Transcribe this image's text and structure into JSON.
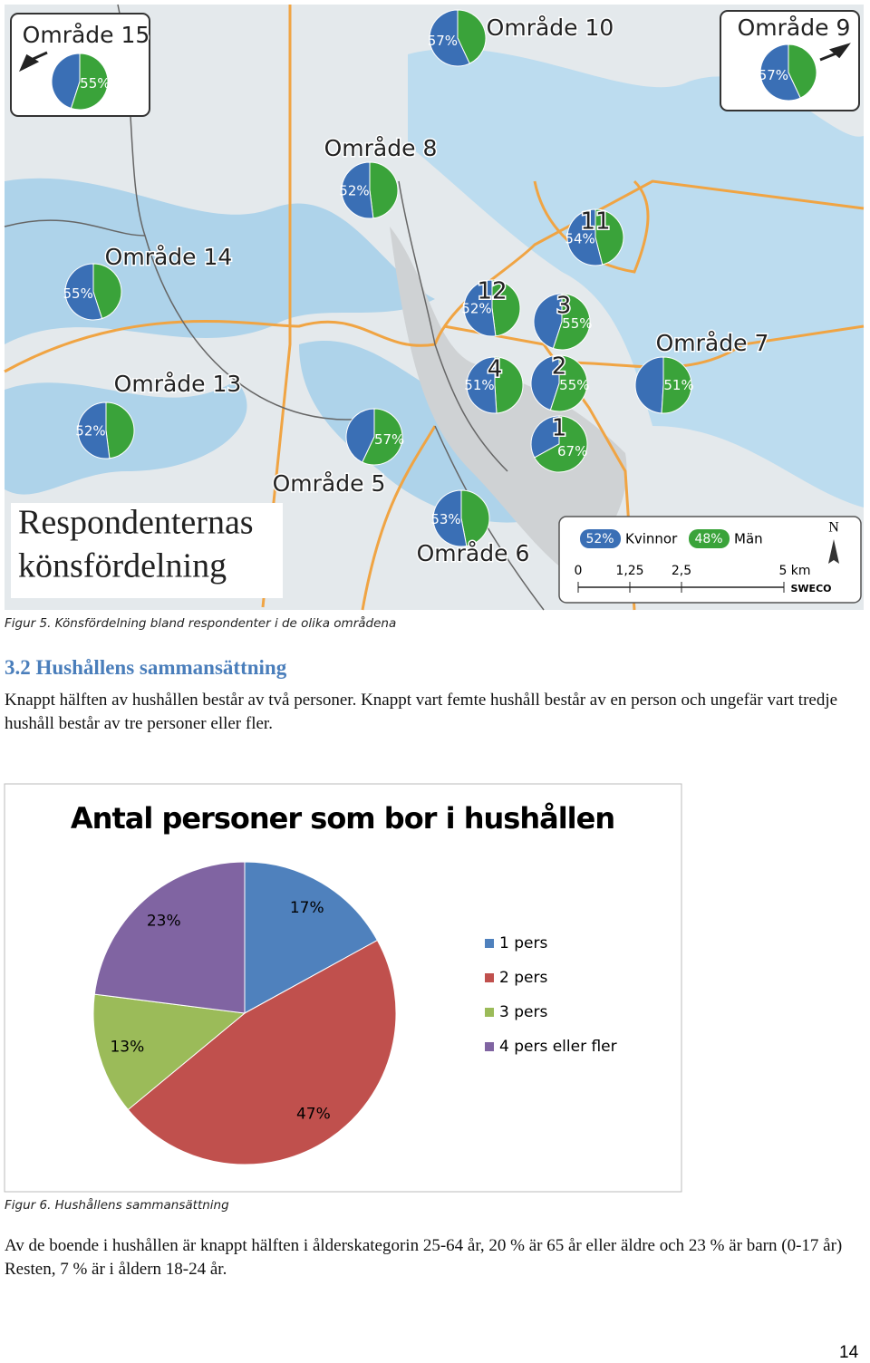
{
  "map": {
    "title_lines": [
      "Respondenternas",
      "könsfördelning"
    ],
    "colors": {
      "women": "#3a6fb5",
      "men": "#3aa33a"
    },
    "areas": [
      {
        "name": "Område 15",
        "value": 55,
        "value_label": "55%",
        "color": "#3aa33a"
      },
      {
        "name": "Område 10",
        "value": 57,
        "value_label": "57%",
        "color": "#3a6fb5"
      },
      {
        "name": "Område 9",
        "value": 57,
        "value_label": "57%",
        "color": "#3a6fb5"
      },
      {
        "name": "Område 8",
        "value": 52,
        "value_label": "52%",
        "color": "#3a6fb5"
      },
      {
        "name": "Område 14",
        "value": 55,
        "value_label": "55%",
        "color": "#3a6fb5"
      },
      {
        "name": "11",
        "value": 54,
        "value_label": "54%",
        "color": "#3a6fb5"
      },
      {
        "name": "12",
        "value": 52,
        "value_label": "52%",
        "color": "#3a6fb5"
      },
      {
        "name": "3",
        "value": 55,
        "value_label": "55%",
        "color": "#3aa33a"
      },
      {
        "name": "Område 7",
        "value": 51,
        "value_label": "51%",
        "color": "#3aa33a"
      },
      {
        "name": "Område 13",
        "value": 52,
        "value_label": "52%",
        "color": "#3a6fb5"
      },
      {
        "name": "4",
        "value": 51,
        "value_label": "51%",
        "color": "#3a6fb5"
      },
      {
        "name": "2",
        "value": 55,
        "value_label": "55%",
        "color": "#3aa33a"
      },
      {
        "name": "1",
        "value": 67,
        "value_label": "67%",
        "color": "#3aa33a"
      },
      {
        "name": "Område 5",
        "value": 57,
        "value_label": "57%",
        "color": "#3aa33a"
      },
      {
        "name": "Område 6",
        "value": 53,
        "value_label": "53%",
        "color": "#3a6fb5"
      }
    ],
    "legend": [
      {
        "label": "52%",
        "name": "Kvinnor"
      },
      {
        "label": "48%",
        "name": "Män"
      }
    ],
    "scale": [
      "0",
      "1,25",
      "2,5",
      "5 km"
    ],
    "north": "N",
    "brand": "SWECO"
  },
  "figure5_caption": "Figur 5. Könsfördelning bland respondenter i de olika områdena",
  "heading": "3.2 Hushållens  sammansättning",
  "paragraph1": "Knappt hälften av hushållen består av två personer. Knappt vart femte hushåll består av en person och ungefär vart tredje hushåll består av tre personer eller fler.",
  "chart_data": {
    "type": "pie",
    "title": "Antal personer som bor i hushållen",
    "categories": [
      "1 pers",
      "2 pers",
      "3 pers",
      "4 pers eller fler"
    ],
    "values": [
      17,
      47,
      13,
      23
    ],
    "value_labels": [
      "17%",
      "47%",
      "13%",
      "23%"
    ],
    "colors": [
      "#4f81bd",
      "#c0504d",
      "#9bbb59",
      "#8064a2"
    ],
    "legend": "right"
  },
  "figure6_caption": "Figur 6. Hushållens sammansättning",
  "paragraph2": "Av de boende i hushållen är knappt hälften i ålderskategorin 25-64 år, 20 % är 65 år eller äldre och 23 % är barn (0-17 år) Resten, 7 % är i åldern 18-24 år.",
  "page_number": "14"
}
